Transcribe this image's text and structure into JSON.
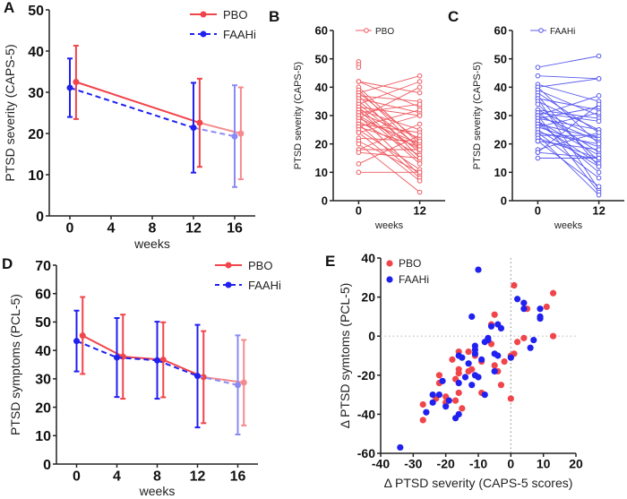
{
  "colors": {
    "pbo": "#f0454b",
    "faahi": "#2020f0",
    "pbo_light": "#f58a8e",
    "faahi_light": "#8a8af5",
    "pbo_open": "#ee5a60",
    "faahi_open": "#5a5af0"
  },
  "chart_data": [
    {
      "panel": "A",
      "type": "line",
      "xlabel": "weeks",
      "ylabel": "PTSD severity (CAPS-5)",
      "xticks": [
        0,
        4,
        8,
        12,
        16
      ],
      "yticks": [
        0,
        10,
        20,
        30,
        40,
        50
      ],
      "xlim": [
        -2,
        18
      ],
      "ylim": [
        0,
        50
      ],
      "legend": "top-right",
      "error_bars": true,
      "series": [
        {
          "name": "PBO",
          "style": "solid",
          "x": [
            0,
            12,
            16
          ],
          "y": [
            32.5,
            22.6,
            20.0
          ],
          "lo": [
            23.5,
            11.9,
            8.9
          ],
          "hi": [
            41.3,
            33.3,
            31.2
          ]
        },
        {
          "name": "FAAHi",
          "style": "dashed",
          "x": [
            0,
            12,
            16
          ],
          "y": [
            31.1,
            21.4,
            19.3
          ],
          "lo": [
            24.0,
            10.5,
            7.0
          ],
          "hi": [
            38.2,
            32.3,
            31.7
          ]
        }
      ]
    },
    {
      "panel": "B",
      "type": "line",
      "xlabel": "weeks",
      "ylabel": "PTSD severity (CAPS-5)",
      "xticks": [
        0,
        12
      ],
      "yticks": [
        0,
        10,
        20,
        30,
        40,
        50,
        60
      ],
      "xlim": [
        -5,
        17
      ],
      "ylim": [
        0,
        60
      ],
      "legend": "top",
      "series": [
        {
          "name": "PBO",
          "marker": "open-circle",
          "pairs": [
            [
              49,
              null
            ],
            [
              48,
              null
            ],
            [
              47,
              null
            ],
            [
              42,
              38
            ],
            [
              42,
              33
            ],
            [
              40,
              20
            ],
            [
              39,
              18
            ],
            [
              38,
              44
            ],
            [
              38,
              21
            ],
            [
              37,
              35
            ],
            [
              37,
              15
            ],
            [
              36,
              31
            ],
            [
              35,
              19
            ],
            [
              34,
              42
            ],
            [
              34,
              17
            ],
            [
              33,
              30
            ],
            [
              33,
              14
            ],
            [
              32,
              25
            ],
            [
              32,
              13
            ],
            [
              31,
              34
            ],
            [
              31,
              22
            ],
            [
              30,
              18
            ],
            [
              30,
              9
            ],
            [
              29,
              40
            ],
            [
              29,
              20
            ],
            [
              28,
              16
            ],
            [
              27,
              24
            ],
            [
              27,
              8
            ],
            [
              26,
              32
            ],
            [
              26,
              19
            ],
            [
              25,
              11
            ],
            [
              24,
              30
            ],
            [
              24,
              7
            ],
            [
              22,
              21
            ],
            [
              21,
              10
            ],
            [
              20,
              3
            ],
            [
              18,
              27
            ],
            [
              18,
              18
            ],
            [
              17,
              15
            ],
            [
              13,
              23
            ],
            [
              10,
              10
            ]
          ]
        }
      ]
    },
    {
      "panel": "C",
      "type": "line",
      "xlabel": "weeks",
      "ylabel": "PTSD severity (CAPS-5)",
      "xticks": [
        0,
        12
      ],
      "yticks": [
        0,
        10,
        20,
        30,
        40,
        50,
        60
      ],
      "xlim": [
        -5,
        17
      ],
      "ylim": [
        0,
        60
      ],
      "legend": "top",
      "series": [
        {
          "name": "FAAHi",
          "marker": "open-circle",
          "pairs": [
            [
              47,
              51
            ],
            [
              44,
              43
            ],
            [
              41,
              35
            ],
            [
              40,
              43
            ],
            [
              40,
              20
            ],
            [
              39,
              30
            ],
            [
              38,
              24
            ],
            [
              37,
              12
            ],
            [
              36,
              32
            ],
            [
              36,
              4
            ],
            [
              35,
              25
            ],
            [
              34,
              14
            ],
            [
              32,
              29
            ],
            [
              32,
              22
            ],
            [
              31,
              28
            ],
            [
              31,
              17
            ],
            [
              30,
              37
            ],
            [
              30,
              21
            ],
            [
              30,
              3
            ],
            [
              29,
              33
            ],
            [
              29,
              25
            ],
            [
              28,
              16
            ],
            [
              28,
              10
            ],
            [
              27,
              22
            ],
            [
              27,
              13
            ],
            [
              26,
              31
            ],
            [
              26,
              19
            ],
            [
              25,
              12
            ],
            [
              24,
              20
            ],
            [
              24,
              8
            ],
            [
              23,
              23
            ],
            [
              23,
              2
            ],
            [
              22,
              15
            ],
            [
              21,
              18
            ],
            [
              21,
              5
            ],
            [
              18,
              24
            ],
            [
              17,
              15
            ],
            [
              17,
              34
            ],
            [
              15,
              15
            ]
          ]
        }
      ]
    },
    {
      "panel": "D",
      "type": "line",
      "xlabel": "weeks",
      "ylabel": "PTSD symptoms (PCL-5)",
      "xticks": [
        0,
        4,
        8,
        12,
        16
      ],
      "yticks": [
        0,
        10,
        20,
        30,
        40,
        50,
        60,
        70
      ],
      "xlim": [
        -2,
        18
      ],
      "ylim": [
        0,
        70
      ],
      "legend": "top-right",
      "error_bars": true,
      "series": [
        {
          "name": "PBO",
          "style": "solid",
          "x": [
            0,
            4,
            8,
            12,
            16
          ],
          "y": [
            45.2,
            37.8,
            36.7,
            30.6,
            28.7
          ],
          "lo": [
            31.7,
            23.0,
            23.5,
            14.4,
            13.6
          ],
          "hi": [
            58.8,
            52.6,
            49.9,
            46.8,
            43.7
          ]
        },
        {
          "name": "FAAHi",
          "style": "dashed",
          "x": [
            0,
            4,
            8,
            12,
            16
          ],
          "y": [
            43.3,
            37.5,
            36.5,
            31.0,
            27.8
          ],
          "lo": [
            32.6,
            23.6,
            23.0,
            12.9,
            10.4
          ],
          "hi": [
            54.0,
            51.4,
            50.1,
            49.0,
            45.3
          ]
        }
      ]
    },
    {
      "panel": "E",
      "type": "scatter",
      "xlabel": "Δ PTSD severity (CAPS-5 scores)",
      "ylabel": "Δ PTSD symtoms (PCL-5)",
      "xticks": [
        -40,
        -30,
        -20,
        -10,
        0,
        10,
        20
      ],
      "yticks": [
        -60,
        -40,
        -20,
        0,
        20,
        40
      ],
      "xlim": [
        -40,
        20
      ],
      "ylim": [
        -60,
        40
      ],
      "legend": "top-left",
      "zero_lines": "dotted",
      "series": [
        {
          "name": "PBO",
          "points": [
            [
              1,
              26
            ],
            [
              13,
              22
            ],
            [
              11,
              15
            ],
            [
              5,
              14
            ],
            [
              13,
              0
            ],
            [
              4,
              -1
            ],
            [
              2,
              -3
            ],
            [
              1,
              -9
            ],
            [
              0,
              -10
            ],
            [
              0,
              -32
            ],
            [
              -2,
              -13
            ],
            [
              -3,
              -25
            ],
            [
              -4,
              -18
            ],
            [
              -5,
              -15
            ],
            [
              -5,
              11
            ],
            [
              -6,
              6
            ],
            [
              -6,
              -4
            ],
            [
              -9,
              -13
            ],
            [
              -9,
              -29
            ],
            [
              -11,
              -10
            ],
            [
              -12,
              -17
            ],
            [
              -13,
              -18
            ],
            [
              -13,
              -8
            ],
            [
              -16,
              -8
            ],
            [
              -16,
              -17
            ],
            [
              -16,
              -19
            ],
            [
              -16,
              -29
            ],
            [
              -15,
              -37
            ],
            [
              -17,
              -22
            ],
            [
              -17,
              -33
            ],
            [
              -18,
              -12
            ],
            [
              -20,
              -31
            ],
            [
              -20,
              -34
            ],
            [
              -22,
              -20
            ],
            [
              -22,
              -24
            ],
            [
              -23,
              -32
            ],
            [
              -27,
              -35
            ],
            [
              -27,
              -43
            ]
          ]
        },
        {
          "name": "FAAHi",
          "points": [
            [
              -10,
              34
            ],
            [
              2,
              19
            ],
            [
              4,
              17
            ],
            [
              4,
              14
            ],
            [
              9,
              14
            ],
            [
              9,
              10
            ],
            [
              9,
              9
            ],
            [
              7,
              -2
            ],
            [
              6,
              -6
            ],
            [
              0,
              -11
            ],
            [
              -3,
              4
            ],
            [
              -4,
              6
            ],
            [
              -6,
              5
            ],
            [
              -4,
              -10
            ],
            [
              -5,
              -9
            ],
            [
              -5,
              -18
            ],
            [
              -7,
              -1
            ],
            [
              -7,
              -2
            ],
            [
              -8,
              -3
            ],
            [
              -9,
              -12
            ],
            [
              -11,
              -5
            ],
            [
              -11,
              -7
            ],
            [
              -11,
              -9
            ],
            [
              -11,
              -20
            ],
            [
              -10,
              -21
            ],
            [
              -12,
              10
            ],
            [
              -12,
              -25
            ],
            [
              -13,
              -14
            ],
            [
              -14,
              -21
            ],
            [
              -15,
              -11
            ],
            [
              -16,
              -10
            ],
            [
              -16,
              -24
            ],
            [
              -16,
              -40
            ],
            [
              -17,
              -42
            ],
            [
              -8,
              -30
            ],
            [
              -19,
              -33
            ],
            [
              -20,
              -36
            ],
            [
              -21,
              -23
            ],
            [
              -22,
              -30
            ],
            [
              -24,
              -30
            ],
            [
              -24,
              -34
            ],
            [
              -26,
              -39
            ],
            [
              -34,
              -57
            ]
          ]
        }
      ]
    }
  ]
}
